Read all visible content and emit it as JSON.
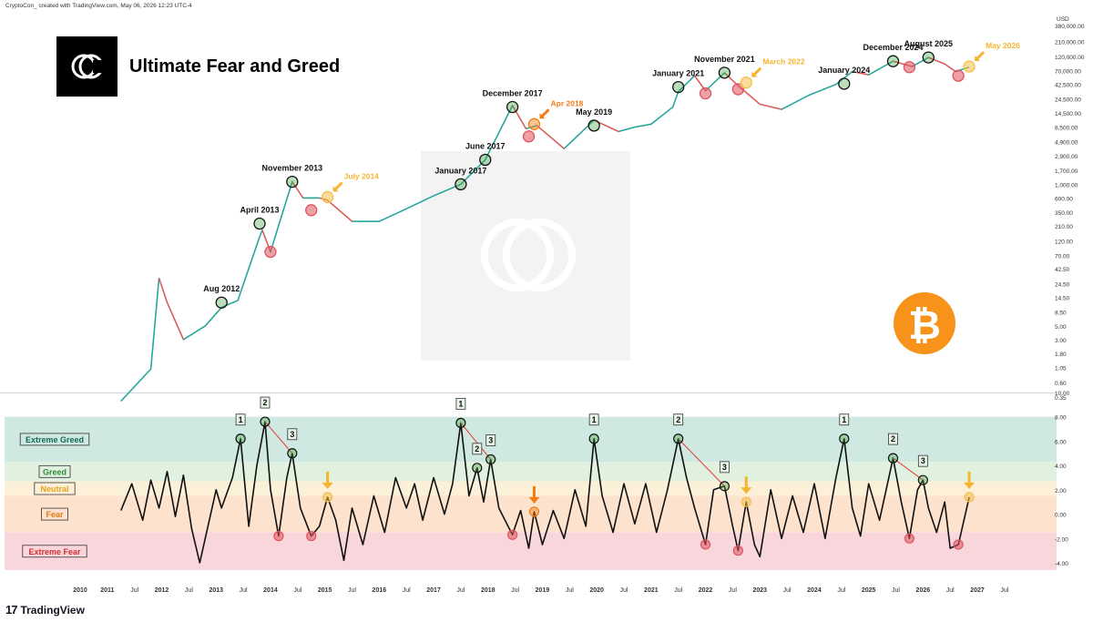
{
  "header": {
    "caption": "CryptoCon_ created with TradingView.com, May 06, 2026 12:23 UTC-4",
    "footer_brand": "TradingView"
  },
  "brand": {
    "title": "Ultimate Fear and Greed",
    "logo_text": "CC"
  },
  "colors": {
    "up": "#26a69a",
    "down": "#ef5350",
    "greed_circle": "#3a9d3a",
    "fear_circle": "#e0525e",
    "neutral_circle": "#f5c04a",
    "arrow_yellow": "#f5b52e",
    "arrow_orange": "#f57c14",
    "bitcoin": "#f7931a",
    "trendline": "#e53935",
    "zone_extreme_greed": "#cfe8e2",
    "zone_greed": "#e0f1df",
    "zone_neutral": "#fdf0d9",
    "zone_fear": "#fde3cd",
    "zone_extreme_fear": "#f9d6dc"
  },
  "chart_data": [
    {
      "type": "line",
      "name": "BTC price (log scale)",
      "y_scale": "log",
      "y_axis_label": "USD",
      "y_ticks": [
        "380,000.00",
        "210,000.00",
        "120,000.00",
        "70,000.00",
        "42,500.00",
        "24,500.00",
        "14,500.00",
        "8,500.00",
        "4,900.00",
        "2,900.00",
        "1,700.00",
        "1,000.00",
        "600.00",
        "350.00",
        "210.00",
        "120.00",
        "70.00",
        "42.50",
        "24.50",
        "14.50",
        "8.50",
        "5.00",
        "3.00",
        "1.80",
        "1.05",
        "0.60",
        "0.35"
      ],
      "x_ticks": [
        "2010",
        "2011",
        "Jul",
        "2012",
        "Jul",
        "2013",
        "Jul",
        "2014",
        "Jul",
        "2015",
        "Jul",
        "2016",
        "Jul",
        "2017",
        "Jul",
        "2018",
        "Jul",
        "2019",
        "Jul",
        "2020",
        "Jul",
        "2021",
        "Jul",
        "2022",
        "Jul",
        "2023",
        "Jul",
        "2024",
        "Jul",
        "2025",
        "Jul",
        "2026",
        "Jul",
        "2027",
        "Jul"
      ],
      "x": [
        2010.75,
        2011.3,
        2011.45,
        2011.6,
        2011.9,
        2012.3,
        2012.6,
        2012.9,
        2013.3,
        2013.35,
        2013.5,
        2013.9,
        2014.1,
        2014.4,
        2014.55,
        2015.0,
        2015.5,
        2016.0,
        2016.5,
        2017.0,
        2017.45,
        2017.95,
        2018.2,
        2018.4,
        2018.9,
        2019.45,
        2019.9,
        2020.2,
        2020.5,
        2020.9,
        2021.0,
        2021.3,
        2021.5,
        2021.85,
        2022.1,
        2022.5,
        2022.9,
        2023.4,
        2023.9,
        2024.2,
        2024.5,
        2024.95,
        2025.3,
        2025.6,
        2025.9,
        2026.1,
        2026.35
      ],
      "y": [
        0.3,
        1.0,
        30.0,
        12.0,
        3.0,
        5.0,
        10.0,
        13.0,
        140.0,
        180.0,
        80.0,
        1100.0,
        600.0,
        600.0,
        550.0,
        250.0,
        250.0,
        400.0,
        650.0,
        1000.0,
        2500.0,
        19000.0,
        8000.0,
        9000.0,
        3800.0,
        11000.0,
        7200.0,
        8500.0,
        9500.0,
        18000.0,
        32000.0,
        58000.0,
        33000.0,
        65000.0,
        40000.0,
        20000.0,
        16500.0,
        28000.0,
        42000.0,
        68000.0,
        60000.0,
        100000.0,
        82000.0,
        115000.0,
        90000.0,
        68000.0,
        80000.0
      ],
      "annotations": [
        {
          "label": "Aug 2012",
          "kind": "greed",
          "x": 2012.6,
          "y": 12.0
        },
        {
          "label": "",
          "kind": "fear",
          "x": 2013.5,
          "y": 80.0
        },
        {
          "label": "April 2013",
          "kind": "greed",
          "x": 2013.3,
          "y": 230.0
        },
        {
          "label": "November 2013",
          "kind": "greed",
          "x": 2013.9,
          "y": 1100.0
        },
        {
          "label": "",
          "kind": "fear",
          "x": 2014.25,
          "y": 380.0
        },
        {
          "label": "July 2014",
          "kind": "neutral",
          "x": 2014.55,
          "y": 620.0
        },
        {
          "label": "January 2017",
          "kind": "greed",
          "x": 2017.0,
          "y": 1000.0
        },
        {
          "label": "June 2017",
          "kind": "greed",
          "x": 2017.45,
          "y": 2500.0
        },
        {
          "label": "December 2017",
          "kind": "greed",
          "x": 2017.95,
          "y": 18000.0
        },
        {
          "label": "",
          "kind": "fear",
          "x": 2018.25,
          "y": 6000.0
        },
        {
          "label": "Apr 2018",
          "kind": "orange",
          "x": 2018.35,
          "y": 9500.0
        },
        {
          "label": "May 2019",
          "kind": "greed",
          "x": 2019.45,
          "y": 9000.0
        },
        {
          "label": "January 2021",
          "kind": "greed",
          "x": 2021.0,
          "y": 38000.0
        },
        {
          "label": "",
          "kind": "fear",
          "x": 2021.5,
          "y": 30000.0
        },
        {
          "label": "November 2021",
          "kind": "greed",
          "x": 2021.85,
          "y": 65000.0
        },
        {
          "label": "",
          "kind": "fear",
          "x": 2022.1,
          "y": 35000.0
        },
        {
          "label": "March 2022",
          "kind": "neutral",
          "x": 2022.25,
          "y": 45000.0
        },
        {
          "label": "January 2024",
          "kind": "greed",
          "x": 2024.05,
          "y": 43000.0
        },
        {
          "label": "December 2024",
          "kind": "greed",
          "x": 2024.95,
          "y": 100000.0
        },
        {
          "label": "",
          "kind": "fear",
          "x": 2025.25,
          "y": 80000.0
        },
        {
          "label": "August 2025",
          "kind": "greed",
          "x": 2025.6,
          "y": 115000.0
        },
        {
          "label": "",
          "kind": "fear",
          "x": 2026.15,
          "y": 58000.0
        },
        {
          "label": "May 2026",
          "kind": "neutral",
          "x": 2026.35,
          "y": 82000.0
        }
      ],
      "arrow_labels": [
        "July 2014",
        "Apr 2018",
        "March 2022",
        "May 2026"
      ]
    },
    {
      "type": "line",
      "name": "Ultimate Fear and Greed oscillator",
      "y_ticks": [
        "10.00",
        "8.00",
        "6.00",
        "4.00",
        "2.00",
        "0.00",
        "-2.00",
        "-4.00"
      ],
      "ylim": [
        -4.6,
        10
      ],
      "zones": [
        {
          "label": "Extreme Greed",
          "from": 4.3,
          "to": 8.0
        },
        {
          "label": "Greed",
          "from": 2.7,
          "to": 4.3
        },
        {
          "label": "Neutral",
          "from": 1.5,
          "to": 2.7
        },
        {
          "label": "Fear",
          "from": -1.5,
          "to": 1.5
        },
        {
          "label": "Extreme Fear",
          "from": -4.6,
          "to": -1.5
        }
      ],
      "x": [
        2010.75,
        2010.95,
        2011.15,
        2011.3,
        2011.45,
        2011.6,
        2011.75,
        2011.9,
        2012.05,
        2012.2,
        2012.35,
        2012.5,
        2012.6,
        2012.8,
        2012.95,
        2013.1,
        2013.25,
        2013.4,
        2013.5,
        2013.65,
        2013.8,
        2013.9,
        2014.05,
        2014.25,
        2014.4,
        2014.55,
        2014.7,
        2014.85,
        2015.0,
        2015.2,
        2015.4,
        2015.6,
        2015.8,
        2016.0,
        2016.15,
        2016.3,
        2016.5,
        2016.7,
        2016.85,
        2017.0,
        2017.15,
        2017.3,
        2017.42,
        2017.55,
        2017.7,
        2017.95,
        2018.1,
        2018.25,
        2018.35,
        2018.5,
        2018.7,
        2018.9,
        2019.1,
        2019.3,
        2019.45,
        2019.6,
        2019.8,
        2020.0,
        2020.2,
        2020.4,
        2020.6,
        2020.8,
        2021.0,
        2021.15,
        2021.3,
        2021.5,
        2021.65,
        2021.85,
        2022.0,
        2022.1,
        2022.25,
        2022.4,
        2022.5,
        2022.7,
        2022.9,
        2023.1,
        2023.3,
        2023.5,
        2023.7,
        2023.9,
        2024.05,
        2024.2,
        2024.35,
        2024.5,
        2024.7,
        2024.95,
        2025.1,
        2025.25,
        2025.4,
        2025.5,
        2025.6,
        2025.75,
        2025.9,
        2026.0,
        2026.15,
        2026.35
      ],
      "y": [
        0.3,
        2.5,
        -0.5,
        2.8,
        0.5,
        3.5,
        -0.2,
        3.2,
        -1.2,
        -4.0,
        -1.0,
        2.0,
        0.5,
        3.0,
        6.2,
        -1.0,
        4.0,
        7.6,
        2.0,
        -1.8,
        3.0,
        5.0,
        0.5,
        -1.8,
        -1.0,
        1.4,
        -0.5,
        -3.8,
        0.5,
        -2.5,
        1.5,
        -1.5,
        3.0,
        0.5,
        2.5,
        -0.5,
        3.0,
        0.0,
        2.5,
        7.5,
        1.5,
        3.8,
        1.0,
        4.5,
        0.5,
        -1.7,
        0.3,
        -2.8,
        0.2,
        -2.5,
        0.3,
        -2.0,
        2.0,
        -1.0,
        6.2,
        1.5,
        -1.5,
        2.5,
        -0.8,
        2.5,
        -1.5,
        2.0,
        6.2,
        3.0,
        0.5,
        -2.5,
        2.0,
        2.3,
        -1.0,
        -3.0,
        1.0,
        -2.5,
        -3.5,
        2.0,
        -2.0,
        1.5,
        -1.5,
        2.5,
        -2.0,
        3.0,
        6.2,
        0.5,
        -1.8,
        2.5,
        -0.5,
        4.6,
        1.0,
        -2.0,
        2.0,
        2.8,
        0.5,
        -1.5,
        1.0,
        -2.8,
        -2.5,
        1.4
      ],
      "markers": [
        {
          "label": "1",
          "kind": "greed",
          "x": 2012.95,
          "y": 6.2
        },
        {
          "label": "2",
          "kind": "greed",
          "x": 2013.4,
          "y": 7.6
        },
        {
          "label": "3",
          "kind": "greed",
          "x": 2013.9,
          "y": 5.0
        },
        {
          "label": "",
          "kind": "fear",
          "x": 2013.65,
          "y": -1.8
        },
        {
          "label": "",
          "kind": "fear",
          "x": 2014.25,
          "y": -1.8
        },
        {
          "label": "",
          "kind": "neutral",
          "x": 2014.55,
          "y": 1.4
        },
        {
          "label": "1",
          "kind": "greed",
          "x": 2017.0,
          "y": 7.5
        },
        {
          "label": "2",
          "kind": "greed",
          "x": 2017.3,
          "y": 3.8
        },
        {
          "label": "3",
          "kind": "greed",
          "x": 2017.55,
          "y": 4.5
        },
        {
          "label": "",
          "kind": "fear",
          "x": 2017.95,
          "y": -1.7
        },
        {
          "label": "",
          "kind": "orange",
          "x": 2018.35,
          "y": 0.2
        },
        {
          "label": "1",
          "kind": "greed",
          "x": 2019.45,
          "y": 6.2
        },
        {
          "label": "2",
          "kind": "greed",
          "x": 2021.0,
          "y": 6.2
        },
        {
          "label": "3",
          "kind": "greed",
          "x": 2021.85,
          "y": 2.3
        },
        {
          "label": "",
          "kind": "fear",
          "x": 2021.5,
          "y": -2.5
        },
        {
          "label": "",
          "kind": "fear",
          "x": 2022.1,
          "y": -3.0
        },
        {
          "label": "",
          "kind": "neutral",
          "x": 2022.25,
          "y": 1.0
        },
        {
          "label": "1",
          "kind": "greed",
          "x": 2024.05,
          "y": 6.2
        },
        {
          "label": "2",
          "kind": "greed",
          "x": 2024.95,
          "y": 4.6
        },
        {
          "label": "3",
          "kind": "greed",
          "x": 2025.5,
          "y": 2.8
        },
        {
          "label": "",
          "kind": "fear",
          "x": 2025.25,
          "y": -2.0
        },
        {
          "label": "",
          "kind": "fear",
          "x": 2026.15,
          "y": -2.5
        },
        {
          "label": "",
          "kind": "neutral",
          "x": 2026.35,
          "y": 1.4
        }
      ],
      "trendlines": [
        {
          "x1": 2013.4,
          "y1": 7.6,
          "x2": 2013.9,
          "y2": 5.0
        },
        {
          "x1": 2017.0,
          "y1": 7.5,
          "x2": 2017.55,
          "y2": 4.5
        },
        {
          "x1": 2021.0,
          "y1": 6.2,
          "x2": 2021.85,
          "y2": 2.3
        },
        {
          "x1": 2024.95,
          "y1": 4.6,
          "x2": 2025.5,
          "y2": 2.8
        }
      ]
    }
  ]
}
